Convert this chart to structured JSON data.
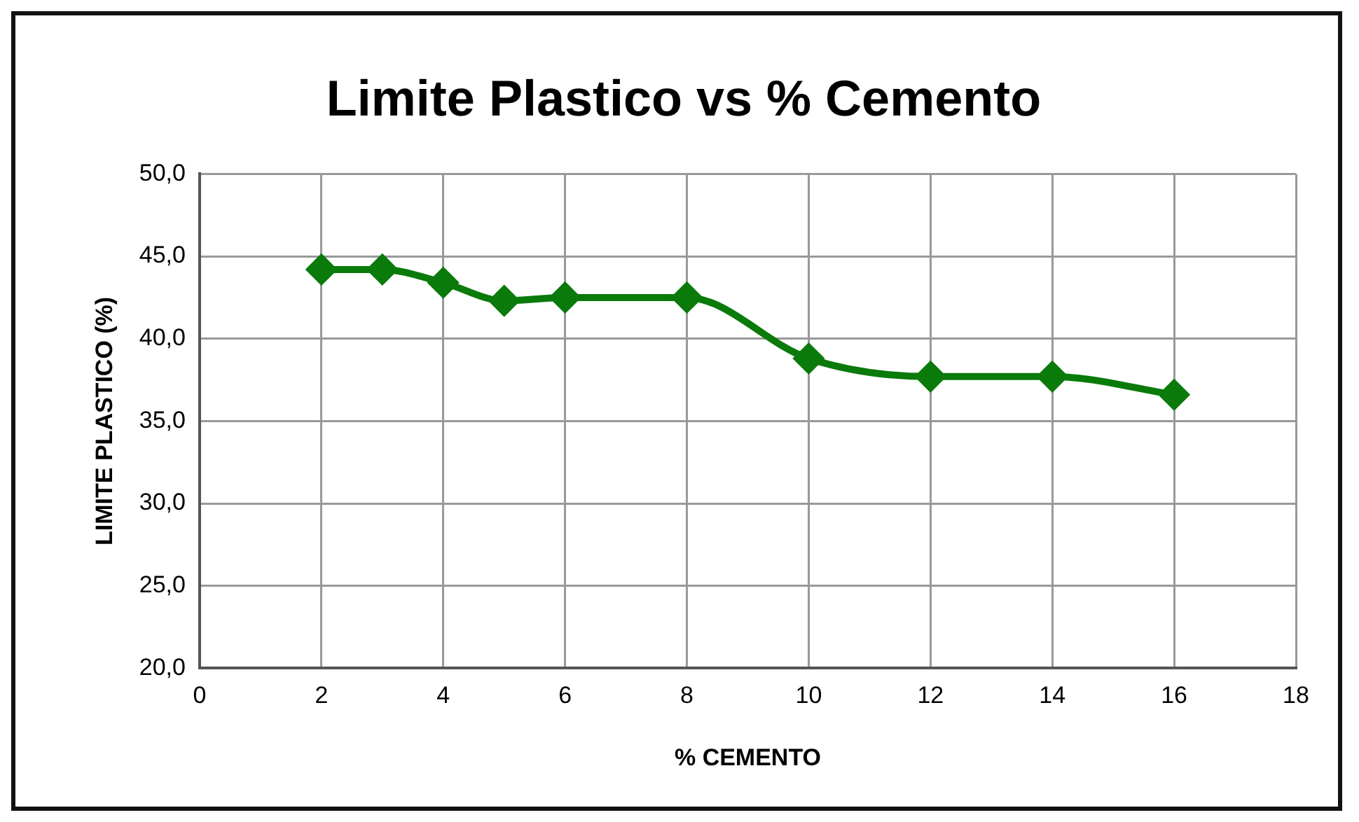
{
  "chart_data": {
    "type": "line",
    "title": "Limite Plastico vs % Cemento",
    "xlabel": "% CEMENTO",
    "ylabel": "LIMITE PLASTICO (%)",
    "x": [
      2,
      3,
      4,
      5,
      6,
      8,
      10,
      12,
      14,
      16
    ],
    "series": [
      {
        "color": "#0a7a0a",
        "values": [
          44.2,
          44.2,
          43.4,
          42.3,
          42.5,
          42.5,
          38.8,
          37.7,
          37.7,
          36.6
        ]
      }
    ],
    "xlim": [
      0,
      18
    ],
    "xticks": [
      0,
      2,
      4,
      6,
      8,
      10,
      12,
      14,
      16,
      18
    ],
    "ylim": [
      20,
      50
    ],
    "yticks": [
      {
        "value": 20,
        "label": "20,0"
      },
      {
        "value": 25,
        "label": "25,0"
      },
      {
        "value": 30,
        "label": "30,0"
      },
      {
        "value": 35,
        "label": "35,0"
      },
      {
        "value": 40,
        "label": "40,0"
      },
      {
        "value": 45,
        "label": "45,0"
      },
      {
        "value": 50,
        "label": "50,0"
      }
    ],
    "grid": true,
    "legend": false,
    "marker": "diamond",
    "line_style": "solid"
  }
}
